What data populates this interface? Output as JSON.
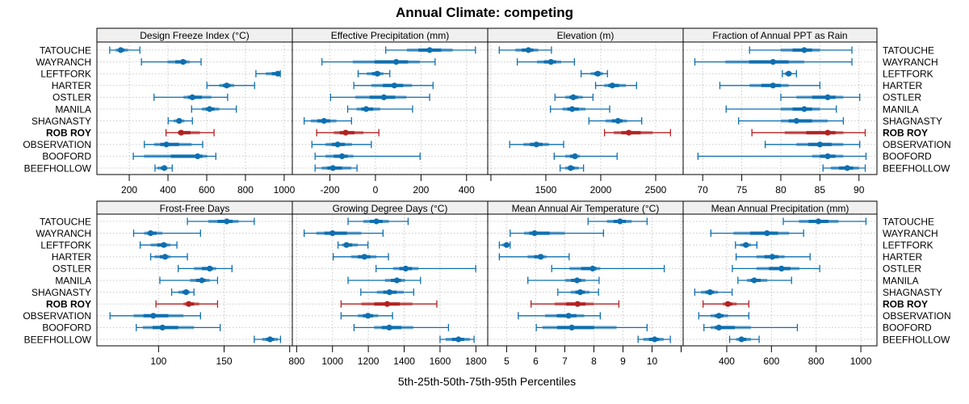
{
  "chart_data": {
    "type": "interval-dotplot",
    "title": "Annual Climate: competing",
    "xlabel": "5th-25th-50th-75th-95th Percentiles",
    "ylabel": "",
    "grid": true,
    "highlight_category": "ROB ROY",
    "colors": {
      "default": "#0e6fb0",
      "highlight": "#b22222"
    },
    "categories": [
      "TATOUCHE",
      "WAYRANCH",
      "LEFTFORK",
      "HARTER",
      "OSTLER",
      "MANILA",
      "SHAGNASTY",
      "ROB ROY",
      "OBSERVATION",
      "BOOFORD",
      "BEEFHOLLOW"
    ],
    "percentile_keys": [
      "p5",
      "p25",
      "p50",
      "p75",
      "p95"
    ],
    "panels": [
      {
        "title": "Design Freeze Index (°C)",
        "xlim": [
          33,
          1042
        ],
        "ticks": [
          200,
          400,
          600,
          800,
          1000
        ],
        "values": [
          [
            99,
            130,
            156,
            193,
            255
          ],
          [
            263,
            397,
            478,
            512,
            571
          ],
          [
            854,
            905,
            967,
            975,
            980
          ],
          [
            601,
            665,
            703,
            742,
            847
          ],
          [
            328,
            480,
            526,
            624,
            708
          ],
          [
            522,
            575,
            615,
            665,
            753
          ],
          [
            401,
            429,
            458,
            485,
            526
          ],
          [
            390,
            450,
            468,
            565,
            638
          ],
          [
            278,
            329,
            392,
            522,
            579
          ],
          [
            221,
            276,
            553,
            603,
            647
          ],
          [
            333,
            346,
            381,
            397,
            422
          ]
        ]
      },
      {
        "title": "Effective Precipitation (mm)",
        "xlim": [
          -365,
          493
        ],
        "ticks": [
          -200,
          0,
          200,
          400
        ],
        "values": [
          [
            45,
            138,
            238,
            339,
            439
          ],
          [
            -235,
            -100,
            91,
            195,
            262
          ],
          [
            -76,
            -38,
            8,
            35,
            63
          ],
          [
            -95,
            -18,
            83,
            160,
            253
          ],
          [
            -197,
            -89,
            37,
            136,
            238
          ],
          [
            -122,
            -83,
            -41,
            21,
            163
          ],
          [
            -313,
            -284,
            -226,
            -171,
            -105
          ],
          [
            -258,
            -183,
            -131,
            -53,
            15
          ],
          [
            -279,
            -219,
            -166,
            -103,
            -18
          ],
          [
            -265,
            -219,
            -147,
            -97,
            196
          ],
          [
            -265,
            -236,
            -187,
            -106,
            -81
          ]
        ]
      },
      {
        "title": "Elevation (m)",
        "xlim": [
          971,
          2750
        ],
        "ticks": [
          1000,
          1500,
          2000,
          2500
        ],
        "tick_labels_hidden": [
          1000
        ],
        "values": [
          [
            1076,
            1223,
            1341,
            1431,
            1551
          ],
          [
            1240,
            1419,
            1547,
            1640,
            1760
          ],
          [
            1821,
            1909,
            1973,
            2020,
            2061
          ],
          [
            1953,
            2032,
            2105,
            2228,
            2326
          ],
          [
            1583,
            1676,
            1750,
            1836,
            1929
          ],
          [
            1542,
            1652,
            1740,
            1860,
            2081
          ],
          [
            1892,
            2044,
            2157,
            2240,
            2373
          ],
          [
            2034,
            2118,
            2255,
            2473,
            2635
          ],
          [
            1171,
            1296,
            1414,
            1529,
            1662
          ],
          [
            1576,
            1676,
            1765,
            1811,
            2149
          ],
          [
            1630,
            1676,
            1726,
            1799,
            1843
          ]
        ]
      },
      {
        "title": "Fraction of Annual PPT as Rain",
        "xlim": [
          67.5,
          92.3
        ],
        "ticks": [
          70,
          75,
          80,
          85,
          90
        ],
        "values": [
          [
            76.0,
            80.0,
            83.0,
            85.0,
            89.1
          ],
          [
            69.0,
            72.9,
            79.0,
            83.0,
            89.1
          ],
          [
            80.2,
            80.5,
            81.0,
            81.4,
            82.0
          ],
          [
            72.2,
            76.0,
            79.0,
            81.0,
            85.0
          ],
          [
            80.0,
            82.0,
            86.0,
            88.0,
            90.1
          ],
          [
            73.0,
            80.0,
            83.0,
            85.0,
            87.1
          ],
          [
            74.6,
            80.0,
            82.0,
            86.0,
            88.0
          ],
          [
            76.3,
            80.5,
            86.0,
            88.0,
            90.8
          ],
          [
            78.0,
            82.0,
            85.0,
            88.0,
            90.1
          ],
          [
            69.4,
            84.0,
            86.0,
            88.0,
            90.9
          ],
          [
            85.4,
            86.4,
            88.5,
            90.0,
            90.8
          ]
        ]
      },
      {
        "title": "Frost-Free Days",
        "xlim": [
          53,
          202
        ],
        "ticks": [
          100,
          150,
          200
        ],
        "tick_labels_hidden": [
          200
        ],
        "values": [
          [
            122,
            138,
            152,
            161,
            173
          ],
          [
            81,
            89,
            94,
            103,
            132
          ],
          [
            86,
            94,
            104,
            109,
            114
          ],
          [
            94,
            97,
            105,
            109,
            122
          ],
          [
            115,
            127,
            139,
            144,
            156
          ],
          [
            101,
            124,
            133,
            139,
            145
          ],
          [
            110,
            115,
            121,
            124,
            127
          ],
          [
            98,
            119,
            123,
            131,
            145
          ],
          [
            63,
            81,
            96,
            119,
            132
          ],
          [
            83,
            88,
            103,
            127,
            147
          ],
          [
            173,
            179,
            185,
            191,
            193
          ]
        ]
      },
      {
        "title": "Growing Degree Days (°C)",
        "xlim": [
          776,
          1866
        ],
        "ticks": [
          800,
          1000,
          1200,
          1400,
          1600,
          1800
        ],
        "values": [
          [
            1087,
            1172,
            1245,
            1315,
            1422
          ],
          [
            842,
            910,
            1000,
            1161,
            1282
          ],
          [
            1031,
            1053,
            1078,
            1142,
            1198
          ],
          [
            1004,
            1105,
            1178,
            1245,
            1312
          ],
          [
            1243,
            1338,
            1408,
            1480,
            1799
          ],
          [
            1087,
            1293,
            1359,
            1405,
            1491
          ],
          [
            1158,
            1248,
            1318,
            1398,
            1453
          ],
          [
            1048,
            1161,
            1305,
            1446,
            1582
          ],
          [
            1048,
            1142,
            1198,
            1255,
            1335
          ],
          [
            1120,
            1232,
            1317,
            1450,
            1647
          ],
          [
            1600,
            1631,
            1703,
            1766,
            1790
          ]
        ]
      },
      {
        "title": "Mean Annual Air Temperature (°C)",
        "xlim": [
          4.35,
          11.07
        ],
        "ticks": [
          5,
          6,
          7,
          8,
          9,
          10,
          11
        ],
        "tick_labels_hidden": [
          11
        ],
        "values": [
          [
            7.8,
            8.45,
            8.9,
            9.3,
            9.83
          ],
          [
            5.12,
            5.6,
            5.96,
            7.0,
            8.33
          ],
          [
            4.75,
            4.84,
            5.0,
            5.06,
            5.12
          ],
          [
            4.75,
            5.72,
            6.17,
            6.37,
            7.15
          ],
          [
            6.55,
            7.16,
            7.96,
            8.22,
            10.42
          ],
          [
            5.73,
            7.02,
            7.42,
            7.71,
            8.18
          ],
          [
            6.76,
            7.2,
            7.53,
            7.85,
            8.16
          ],
          [
            5.84,
            6.65,
            7.44,
            7.99,
            8.86
          ],
          [
            5.4,
            6.32,
            7.13,
            7.67,
            8.22
          ],
          [
            6.02,
            6.23,
            7.24,
            8.78,
            9.83
          ],
          [
            9.52,
            9.7,
            10.09,
            10.4,
            10.63
          ]
        ]
      },
      {
        "title": "Mean Annual Precipitation (mm)",
        "xlim": [
          205,
          1072
        ],
        "ticks": [
          200,
          400,
          600,
          800,
          1000
        ],
        "tick_labels_hidden": [
          200
        ],
        "values": [
          [
            653,
            723,
            810,
            900,
            1023
          ],
          [
            329,
            430,
            580,
            679,
            744
          ],
          [
            439,
            460,
            486,
            508,
            535
          ],
          [
            442,
            533,
            604,
            659,
            773
          ],
          [
            425,
            533,
            645,
            725,
            816
          ],
          [
            450,
            490,
            523,
            581,
            690
          ],
          [
            257,
            285,
            325,
            361,
            424
          ],
          [
            294,
            382,
            405,
            444,
            499
          ],
          [
            275,
            328,
            365,
            406,
            499
          ],
          [
            298,
            328,
            365,
            508,
            716
          ],
          [
            413,
            442,
            466,
            508,
            545
          ]
        ]
      }
    ]
  }
}
